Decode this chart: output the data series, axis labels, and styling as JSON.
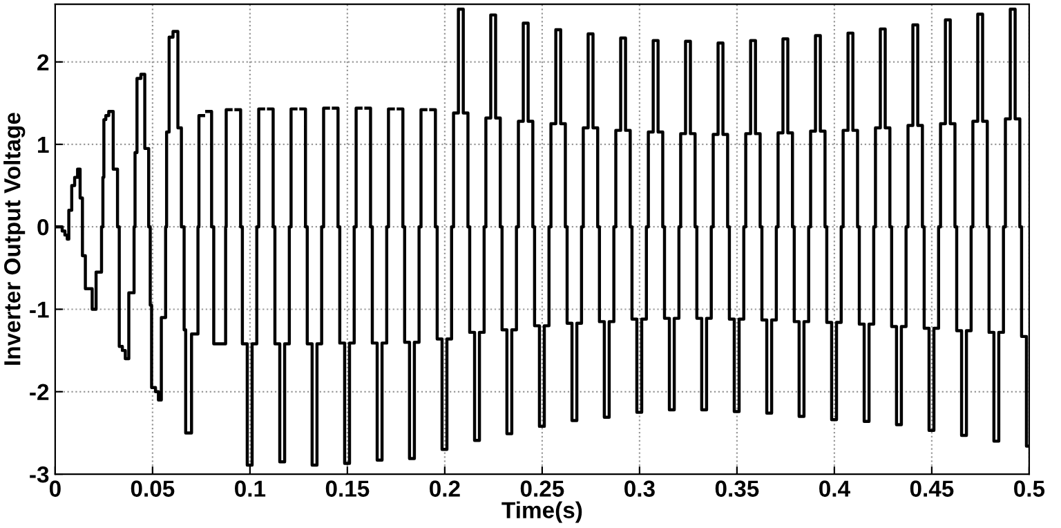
{
  "chart_data": {
    "type": "step",
    "xlabel": "Time(s)",
    "ylabel": "Inverter Output Voltage",
    "xlim": [
      0,
      0.5
    ],
    "ylim": [
      -3,
      2.7
    ],
    "xticks": [
      0,
      0.05,
      0.1,
      0.15,
      0.2,
      0.25,
      0.3,
      0.35,
      0.4,
      0.45,
      0.5
    ],
    "yticks": [
      -3,
      -2,
      -1,
      0,
      1,
      2
    ],
    "grid": true,
    "line_style": "solid",
    "marker": "none",
    "series": [
      {
        "color": "#000000",
        "x": [
          0,
          0.0036,
          0.005,
          0.0062,
          0.007,
          0.0085,
          0.01,
          0.0115,
          0.0128,
          0.014,
          0.0155,
          0.019,
          0.021,
          0.0238,
          0.0245,
          0.025,
          0.026,
          0.0275,
          0.0298,
          0.032,
          0.0329,
          0.0345,
          0.036,
          0.0378,
          0.0405,
          0.041,
          0.042,
          0.044,
          0.046,
          0.048,
          0.0488,
          0.0495,
          0.0515,
          0.053,
          0.0545,
          0.0567,
          0.0572,
          0.0585,
          0.0605,
          0.063,
          0.0648,
          0.0662,
          0.067,
          0.07,
          0.0733,
          0.0738,
          0.0762,
          0.0778,
          0.0803,
          0.0814,
          0.0875,
          0.0878,
          0.0903,
          0.0928,
          0.0952,
          0.0961,
          0.0986,
          0.1011,
          0.1035,
          0.1045,
          0.107,
          0.1095,
          0.1119,
          0.1128,
          0.1153,
          0.1178,
          0.1202,
          0.1211,
          0.1236,
          0.1261,
          0.1285,
          0.1294,
          0.1319,
          0.1344,
          0.1368,
          0.1378,
          0.1403,
          0.1428,
          0.1452,
          0.1461,
          0.1486,
          0.1511,
          0.1535,
          0.1545,
          0.157,
          0.1595,
          0.1619,
          0.1628,
          0.1653,
          0.1678,
          0.1702,
          0.1711,
          0.1736,
          0.1761,
          0.1785,
          0.1794,
          0.1819,
          0.1844,
          0.1868,
          0.1878,
          0.1903,
          0.1928,
          0.1952,
          0.1961,
          0.1986,
          0.2011,
          0.2035,
          0.2045,
          0.207,
          0.2095,
          0.2119,
          0.2128,
          0.2153,
          0.2178,
          0.2202,
          0.2211,
          0.2236,
          0.2261,
          0.2285,
          0.2294,
          0.2319,
          0.2344,
          0.2368,
          0.2378,
          0.2403,
          0.2428,
          0.2452,
          0.2461,
          0.2486,
          0.2511,
          0.2535,
          0.2545,
          0.257,
          0.2595,
          0.2619,
          0.2628,
          0.2653,
          0.2678,
          0.2702,
          0.2711,
          0.2736,
          0.2761,
          0.2785,
          0.2794,
          0.2819,
          0.2844,
          0.2868,
          0.2878,
          0.2903,
          0.2928,
          0.2952,
          0.2961,
          0.2986,
          0.3011,
          0.3035,
          0.3045,
          0.307,
          0.3095,
          0.3119,
          0.3128,
          0.3153,
          0.3178,
          0.3202,
          0.3211,
          0.3236,
          0.3261,
          0.3285,
          0.3294,
          0.3319,
          0.3344,
          0.3368,
          0.3378,
          0.3403,
          0.3428,
          0.3452,
          0.3461,
          0.3486,
          0.3511,
          0.3535,
          0.3545,
          0.357,
          0.3595,
          0.3619,
          0.3628,
          0.3653,
          0.3678,
          0.3702,
          0.3711,
          0.3736,
          0.3761,
          0.3785,
          0.3794,
          0.3819,
          0.3844,
          0.3868,
          0.3878,
          0.3903,
          0.3928,
          0.3952,
          0.3961,
          0.3986,
          0.4011,
          0.4035,
          0.4045,
          0.407,
          0.4095,
          0.4119,
          0.4128,
          0.4153,
          0.4178,
          0.4202,
          0.4211,
          0.4236,
          0.4261,
          0.4285,
          0.4294,
          0.4319,
          0.4344,
          0.4368,
          0.4378,
          0.4403,
          0.4428,
          0.4452,
          0.4461,
          0.4486,
          0.4511,
          0.4535,
          0.4545,
          0.457,
          0.4595,
          0.4619,
          0.4628,
          0.4653,
          0.4678,
          0.4702,
          0.4711,
          0.4736,
          0.4761,
          0.4785,
          0.4794,
          0.4819,
          0.4844,
          0.4868,
          0.4878,
          0.4903,
          0.4928,
          0.4952,
          0.4961,
          0.4986,
          0.5
        ],
        "values": [
          0,
          -0.05,
          -0.1,
          -0.15,
          0.2,
          0.5,
          0.6,
          0.7,
          0.35,
          -0.35,
          -0.75,
          -1.0,
          -0.55,
          0,
          0.6,
          1.3,
          1.35,
          1.4,
          0.7,
          0,
          -1.45,
          -1.5,
          -1.6,
          -0.8,
          0,
          0.9,
          1.8,
          1.85,
          0.95,
          0,
          -0.95,
          -1.95,
          -2.0,
          -2.1,
          -1.1,
          0,
          1.15,
          2.3,
          2.37,
          1.2,
          0,
          -1.25,
          -2.5,
          -1.3,
          0,
          1.35,
          null,
          1.4,
          0,
          -1.42,
          0,
          1.42,
          null,
          1.42,
          0,
          -1.42,
          -2.89,
          -1.42,
          0,
          1.43,
          null,
          1.43,
          0,
          -1.42,
          -2.85,
          -1.42,
          0,
          1.43,
          null,
          1.43,
          0,
          -1.42,
          -2.89,
          -1.42,
          0,
          1.44,
          null,
          1.44,
          0,
          -1.41,
          -2.87,
          -1.41,
          0,
          1.44,
          null,
          1.44,
          0,
          -1.41,
          -2.83,
          -1.41,
          0,
          1.43,
          null,
          1.43,
          0,
          -1.4,
          -2.81,
          -1.4,
          0,
          1.42,
          null,
          1.42,
          0,
          -1.36,
          -2.7,
          -1.36,
          0,
          1.38,
          2.64,
          1.38,
          0,
          -1.28,
          -2.59,
          -1.28,
          0,
          1.32,
          2.57,
          1.32,
          0,
          -1.25,
          -2.51,
          -1.25,
          0,
          1.28,
          2.47,
          1.28,
          0,
          -1.2,
          -2.42,
          -1.2,
          0,
          1.25,
          2.39,
          1.25,
          0,
          -1.17,
          -2.35,
          -1.17,
          0,
          1.2,
          2.34,
          1.2,
          0,
          -1.15,
          -2.31,
          -1.15,
          0,
          1.17,
          2.29,
          1.17,
          0,
          -1.12,
          -2.25,
          -1.12,
          0,
          1.15,
          2.26,
          1.15,
          0,
          -1.11,
          -2.22,
          -1.11,
          0,
          1.13,
          2.25,
          1.13,
          0,
          -1.11,
          -2.22,
          -1.11,
          0,
          1.12,
          2.23,
          1.12,
          0,
          -1.12,
          -2.24,
          -1.12,
          0,
          1.13,
          2.26,
          1.13,
          0,
          -1.13,
          -2.26,
          -1.13,
          0,
          1.14,
          2.28,
          1.14,
          0,
          -1.15,
          -2.3,
          -1.15,
          0,
          1.16,
          2.32,
          1.16,
          0,
          -1.16,
          -2.34,
          -1.16,
          0,
          1.17,
          2.35,
          1.17,
          0,
          -1.18,
          -2.36,
          -1.18,
          0,
          1.2,
          2.4,
          1.2,
          0,
          -1.21,
          -2.4,
          -1.21,
          0,
          1.23,
          2.45,
          1.23,
          0,
          -1.23,
          -2.47,
          -1.23,
          0,
          1.25,
          2.51,
          1.25,
          0,
          -1.26,
          -2.53,
          -1.26,
          0,
          1.28,
          2.58,
          1.28,
          0,
          -1.28,
          -2.6,
          -1.28,
          0,
          1.31,
          2.64,
          1.31,
          0,
          -1.33,
          -2.66,
          -2.66
        ]
      }
    ]
  }
}
